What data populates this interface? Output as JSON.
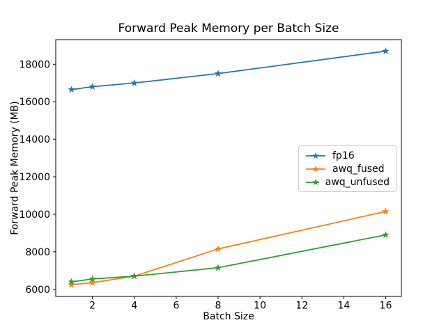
{
  "figure": {
    "background_color": "#ffffff",
    "text_color": "#000000",
    "spine_color": "#000000",
    "legend_border_color": "#cccccc"
  },
  "chart_data": {
    "type": "line",
    "title": "Forward Peak Memory per Batch Size",
    "xlabel": "Batch Size",
    "ylabel": "Forward Peak Memory (MB)",
    "marker": "star",
    "grid": false,
    "legend_position": "center-right",
    "x": [
      1,
      2,
      4,
      8,
      16
    ],
    "series": [
      {
        "name": "fp16",
        "color": "#1f77b4",
        "values": [
          16650,
          16800,
          17000,
          17500,
          18700
        ]
      },
      {
        "name": "awq_fused",
        "color": "#ff7f0e",
        "values": [
          6250,
          6350,
          6700,
          8150,
          10150
        ]
      },
      {
        "name": "awq_unfused",
        "color": "#2ca02c",
        "values": [
          6400,
          6550,
          6700,
          7150,
          8900
        ]
      }
    ],
    "xticks": [
      2,
      4,
      6,
      8,
      10,
      12,
      14,
      16
    ],
    "yticks": [
      6000,
      8000,
      10000,
      12000,
      14000,
      16000,
      18000
    ],
    "xlim": [
      0.25,
      16.75
    ],
    "ylim": [
      5620,
      19310
    ]
  }
}
